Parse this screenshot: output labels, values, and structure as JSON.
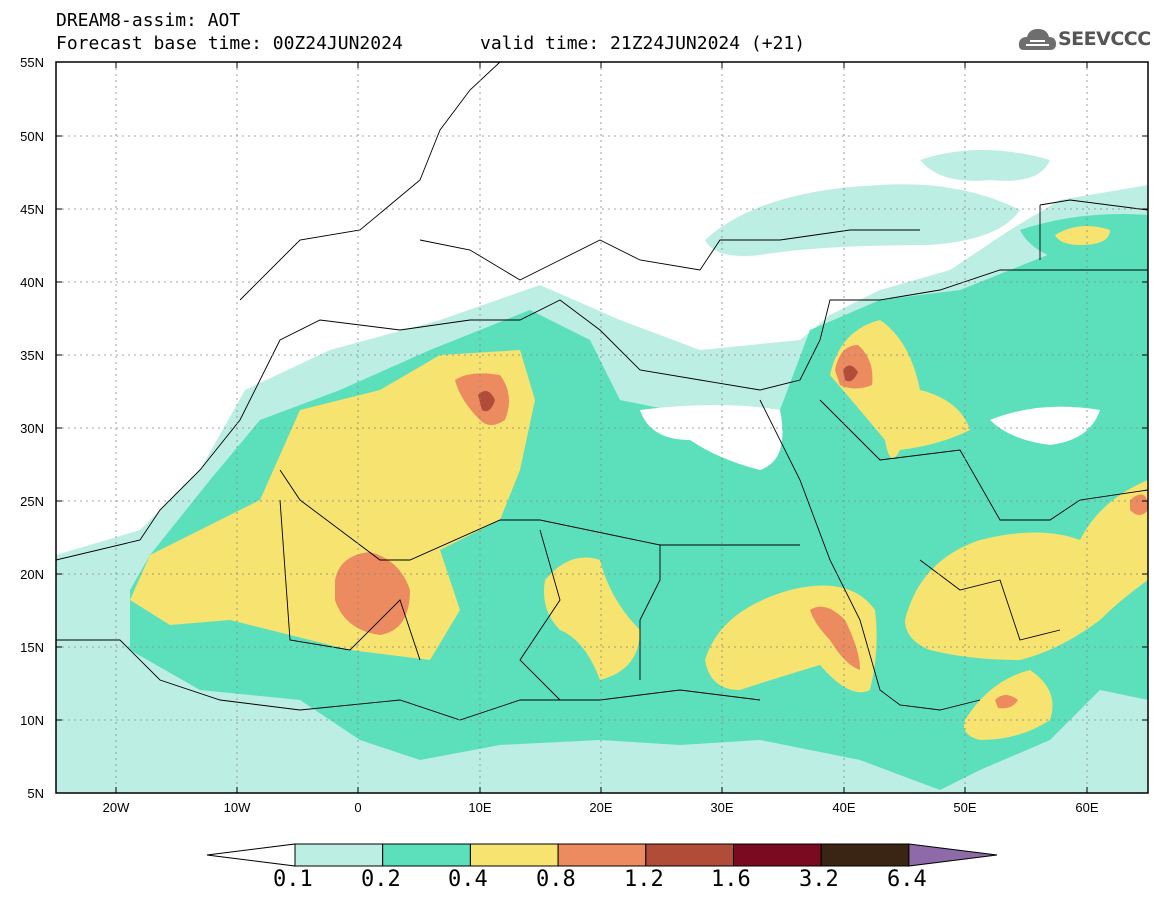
{
  "header": {
    "model_title": "DREAM8-assim: AOT",
    "forecast_base": "Forecast base time: 00Z24JUN2024",
    "valid_time": "valid time: 21Z24JUN2024 (+21)"
  },
  "logo": {
    "text": "SEEVCCC",
    "icon": "cloud-icon"
  },
  "map": {
    "lat_labels": [
      "55N",
      "50N",
      "45N",
      "40N",
      "35N",
      "30N",
      "25N",
      "20N",
      "15N",
      "10N",
      "5N"
    ],
    "lon_labels": [
      "20W",
      "10W",
      "0",
      "10E",
      "20E",
      "30E",
      "40E",
      "50E",
      "60E"
    ],
    "lat_range": [
      5,
      55
    ],
    "lon_range": [
      -25,
      65
    ],
    "gridlines": "dotted"
  },
  "colorbar": {
    "levels": [
      "0.1",
      "0.2",
      "0.4",
      "0.8",
      "1.2",
      "1.6",
      "3.2",
      "6.4"
    ],
    "colors": [
      "#ffffff",
      "#bdeee4",
      "#5ce0bc",
      "#f6e370",
      "#ec8a60",
      "#b04c38",
      "#7a0a20",
      "#3a2414",
      "#8e6aa8"
    ]
  }
}
